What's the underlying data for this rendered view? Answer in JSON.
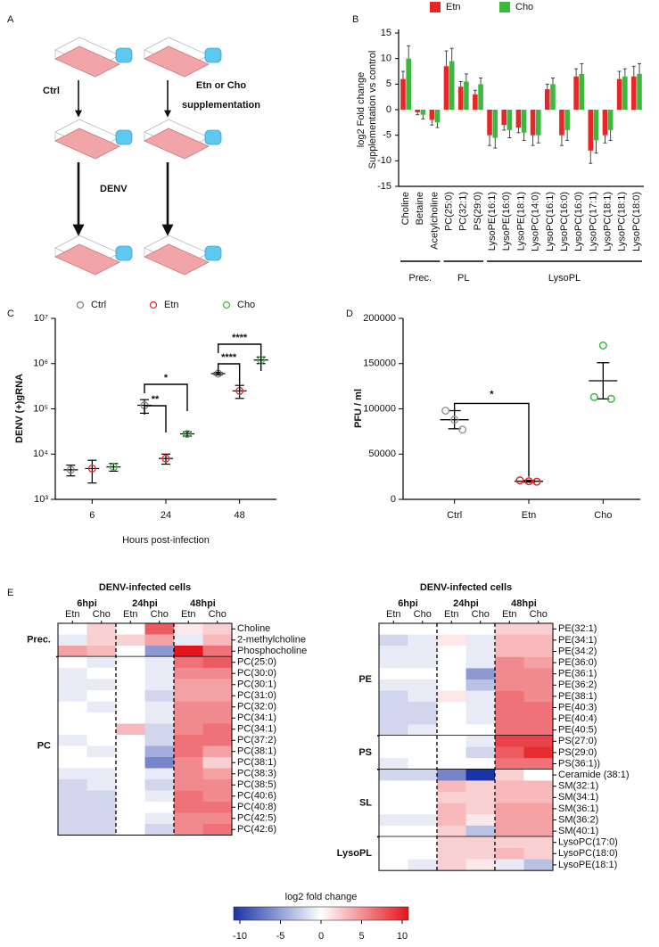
{
  "panel_a": {
    "panel": "A",
    "left_step": "Ctrl",
    "right_step": [
      "Etn or Cho",
      "supplementation"
    ],
    "infection_step": "DENV"
  },
  "chart_data": [
    {
      "type": "bar",
      "panel": "B",
      "ylabel": [
        "log2 Fold change",
        "Supplementation vs control"
      ],
      "categories": [
        "Choline",
        "Betaine",
        "Acetylcholine",
        "PC(25:0)",
        "PC(32:1)",
        "PS(29:0)",
        "LysoPE(16:1)",
        "LysoPE(16:0)",
        "LysoPE(18:1)",
        "LysoPC(14:0)",
        "LysoPC(16:1)",
        "LysoPC(16:0)",
        "LysoPC(16:0)",
        "LysoPC(17:1)",
        "LysoPC(18:1)",
        "LysoPC(18:1)",
        "LysoPC(18:0)"
      ],
      "series": [
        {
          "name": "Etn",
          "color": "#e8262a",
          "values": [
            6,
            -0.5,
            -2,
            8.5,
            4.5,
            3,
            -5,
            -3,
            -3.5,
            -5,
            4,
            -5,
            6.5,
            -8,
            -5,
            6,
            6.5
          ],
          "errors": [
            1.5,
            0.5,
            1,
            3,
            1,
            0.8,
            2,
            1,
            1,
            2,
            1,
            2,
            1.5,
            2.5,
            1.5,
            1.5,
            2
          ]
        },
        {
          "name": "Cho",
          "color": "#3cb93c",
          "values": [
            10,
            -1,
            -2.5,
            9.5,
            5.5,
            5,
            -5.5,
            -4,
            -4.5,
            -5,
            5,
            -4,
            7,
            -6,
            -4,
            6.5,
            7
          ],
          "errors": [
            2.5,
            0.8,
            1,
            2.5,
            1.5,
            1.2,
            2,
            1.5,
            1.5,
            1.5,
            1.2,
            2,
            2,
            2.5,
            2,
            1.5,
            2
          ]
        }
      ],
      "category_groups": [
        "Prec.",
        "PL",
        "LysoPL"
      ],
      "ylim": [
        -15,
        15
      ],
      "yticks": [
        -15,
        -10,
        -5,
        0,
        5,
        10,
        15
      ]
    },
    {
      "type": "dot",
      "panel": "C",
      "ylabel": "DENV (+)gRNA",
      "xlabel": "Hours post-infection",
      "categories": [
        "6",
        "24",
        "48"
      ],
      "log_scale": true,
      "series": [
        {
          "name": "Ctrl",
          "color": "#808080",
          "values": [
            4500,
            120000,
            600000
          ],
          "errors": [
            1200,
            40000,
            40000
          ]
        },
        {
          "name": "Etn",
          "color": "#e8262a",
          "values": [
            4800,
            8000,
            250000
          ],
          "errors": [
            2500,
            2000,
            80000
          ]
        },
        {
          "name": "Cho",
          "color": "#3cb93c",
          "values": [
            5200,
            28000,
            1200000
          ],
          "errors": [
            1000,
            3000,
            200000
          ]
        }
      ],
      "ylim": [
        1000,
        10000000
      ],
      "yticks": [
        {
          "value": 1000,
          "label": "10³"
        },
        {
          "value": 10000,
          "label": "10⁴"
        },
        {
          "value": 100000,
          "label": "10⁵"
        },
        {
          "value": 1000000,
          "label": "10⁶"
        },
        {
          "value": 10000000,
          "label": "10⁷"
        }
      ],
      "annotations": [
        "**",
        "*",
        "****",
        "****"
      ]
    },
    {
      "type": "points",
      "panel": "D",
      "ylabel": "PFU / ml",
      "categories": [
        "Ctrl",
        "Etn",
        "Cho"
      ],
      "colors": [
        "#999999",
        "#e8262a",
        "#3cb93c"
      ],
      "values": [
        88000,
        20000,
        131000
      ],
      "errors": [
        10000,
        1000,
        20000
      ],
      "points": [
        [
          88000,
          98000,
          77000
        ],
        [
          20000,
          21000,
          19500
        ],
        [
          170000,
          113000,
          111000
        ]
      ],
      "ylim": [
        0,
        200000
      ],
      "yticks": [
        0,
        50000,
        100000,
        150000,
        200000
      ],
      "annotations": [
        "*"
      ]
    },
    {
      "type": "heatmap",
      "panel": "E",
      "title": "DENV-infected cells",
      "column_groups": [
        "6hpi",
        "24hpi",
        "48hpi"
      ],
      "columns": [
        "Etn",
        "Cho",
        "Etn",
        "Cho",
        "Etn",
        "Cho"
      ],
      "groups": [
        {
          "name": "Prec.",
          "rows": [
            "Choline",
            "2-methylcholine",
            "Phosphocholine"
          ],
          "values": [
            [
              0,
              2,
              0,
              7,
              1,
              2
            ],
            [
              -1,
              2,
              2,
              4,
              -1,
              3
            ],
            [
              4,
              3,
              0,
              -5,
              10,
              6
            ]
          ]
        },
        {
          "name": "PC",
          "rows": [
            "PC(25:0)",
            "PC(30:0)",
            "PC(30:1)",
            "PC(31:0)",
            "PC(32:0)",
            "PC(34:1)",
            "PC(34:1)",
            "PC(37:2)",
            "PC(38:1)",
            "PC(38:1)",
            "PC(38:3)",
            "PC(38:5)",
            "PC(40:6)",
            "PC(40:8)",
            "PC(42:5)",
            "PC(42:6)"
          ],
          "values": [
            [
              0,
              -1,
              0,
              -1,
              6,
              7
            ],
            [
              -1,
              0,
              0,
              -1,
              5,
              5
            ],
            [
              -1,
              -1,
              0,
              -1,
              4,
              4
            ],
            [
              -1,
              0,
              0,
              -2,
              4,
              4
            ],
            [
              0,
              -1,
              0,
              -1,
              5,
              5
            ],
            [
              0,
              0,
              0,
              -1,
              5,
              5
            ],
            [
              0,
              0,
              3,
              -2,
              5,
              6
            ],
            [
              -1,
              0,
              0,
              -2,
              6,
              6
            ],
            [
              0,
              -1,
              0,
              -4,
              6,
              4
            ],
            [
              0,
              0,
              0,
              -6,
              5,
              2
            ],
            [
              -1,
              -1,
              0,
              -1,
              5,
              4
            ],
            [
              -2,
              -1,
              0,
              -2,
              5,
              5
            ],
            [
              -2,
              -2,
              0,
              -1,
              6,
              5
            ],
            [
              -2,
              -2,
              0,
              0,
              6,
              6
            ],
            [
              -2,
              -2,
              0,
              -1,
              5,
              5
            ],
            [
              -2,
              -2,
              0,
              -2,
              5,
              6
            ]
          ]
        }
      ]
    },
    {
      "type": "heatmap",
      "title": "DENV-infected cells",
      "column_groups": [
        "6hpi",
        "24hpi",
        "48hpi"
      ],
      "columns": [
        "Etn",
        "Cho",
        "Etn",
        "Cho",
        "Etn",
        "Cho"
      ],
      "groups": [
        {
          "name": "PE",
          "rows": [
            "PE(32:1)",
            "PE(34:1)",
            "PE(34:2)",
            "PE(36:0)",
            "PE(36:1)",
            "PE(36:2)",
            "PE(38:1)",
            "PE(40:3)",
            "PE(40:4)",
            "PE(40:5)"
          ],
          "values": [
            [
              0,
              0,
              0,
              0,
              2,
              2
            ],
            [
              -2,
              -1,
              1,
              -1,
              3,
              3
            ],
            [
              -1,
              -1,
              0,
              -1,
              3,
              3
            ],
            [
              -1,
              -1,
              0,
              -1,
              5,
              4
            ],
            [
              0,
              0,
              0,
              -5,
              5,
              5
            ],
            [
              -1,
              -1,
              0,
              -3,
              5,
              5
            ],
            [
              -2,
              -1,
              1,
              -1,
              6,
              5
            ],
            [
              -2,
              -2,
              0,
              -1,
              6,
              6
            ],
            [
              -2,
              -2,
              0,
              -1,
              6,
              6
            ],
            [
              -2,
              -1,
              0,
              0,
              6,
              6
            ]
          ]
        },
        {
          "name": "PS",
          "rows": [
            "PS(27:0)",
            "PS(29:0)",
            "PS(36:1))"
          ],
          "values": [
            [
              0,
              0,
              0,
              -1,
              8,
              8
            ],
            [
              0,
              0,
              0,
              -2,
              7,
              9
            ],
            [
              -1,
              0,
              0,
              0,
              6,
              6
            ]
          ]
        },
        {
          "name": "SL",
          "rows": [
            "Ceramide (38:1)",
            "SM(32:1)",
            "SM(34:1)",
            "SM(36:1)",
            "SM(36:2)",
            "SM(40:1)"
          ],
          "values": [
            [
              -2,
              -2,
              -6,
              -10,
              2,
              0
            ],
            [
              0,
              0,
              3,
              2,
              3,
              3
            ],
            [
              0,
              0,
              2,
              2,
              3,
              3
            ],
            [
              0,
              0,
              3,
              2,
              4,
              4
            ],
            [
              -1,
              -1,
              3,
              1,
              4,
              4
            ],
            [
              0,
              0,
              2,
              -3,
              4,
              4
            ]
          ]
        },
        {
          "name": "LysoPL",
          "rows": [
            "LysoPC(17:0)",
            "LysoPC(18:0)",
            "LysoPE(18:1)"
          ],
          "values": [
            [
              0,
              0,
              2,
              2,
              2,
              2
            ],
            [
              0,
              0,
              2,
              2,
              3,
              2
            ],
            [
              0,
              -1,
              2,
              1,
              -1,
              -3
            ]
          ]
        }
      ]
    },
    {
      "type": "colorbar",
      "label": "log2 fold change",
      "lim": [
        -10,
        10
      ],
      "ticks": [
        -10,
        -5,
        0,
        5,
        10
      ],
      "colors": [
        "#1a33a6",
        "#ffffff",
        "#e3141c"
      ]
    }
  ]
}
